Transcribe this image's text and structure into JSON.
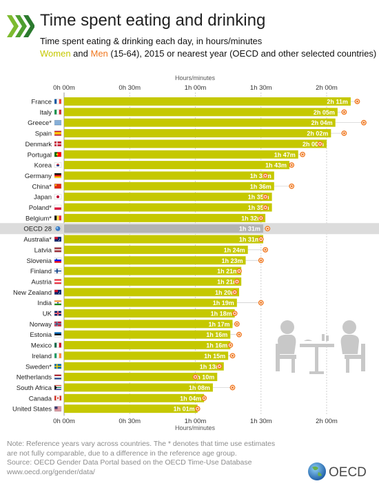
{
  "header": {
    "title": "Time spent eating and drinking",
    "subtitle": "Time spent eating & drinking each day, in hours/minutes",
    "women_label": "Women",
    "and_label": " and ",
    "men_label": "Men",
    "subtitle_rest": " (15-64), 2015 or nearest year (OECD and other selected countries)"
  },
  "colors": {
    "women": "#c5c800",
    "men": "#f07820",
    "bar": "#c5c800",
    "highlight_row": "#dcdcdc",
    "highlight_bar": "#b3b3b3"
  },
  "chart_data": {
    "type": "bar",
    "orientation": "horizontal",
    "axis_title": "Hours/minutes",
    "xlim": [
      0,
      150
    ],
    "x_unit": "minutes",
    "ticks": [
      {
        "value": 0,
        "label": "0h 00m"
      },
      {
        "value": 30,
        "label": "0h 30m"
      },
      {
        "value": 60,
        "label": "1h 00m"
      },
      {
        "value": 90,
        "label": "1h 30m"
      },
      {
        "value": 120,
        "label": "2h 00m"
      }
    ],
    "highlight": "OECD 28",
    "categories": [
      "France",
      "Italy",
      "Greece*",
      "Spain",
      "Denmark",
      "Portugal",
      "Korea",
      "Germany",
      "China*",
      "Japan",
      "Poland*",
      "Belgium*",
      "OECD 28",
      "Australia*",
      "Latvia",
      "Slovenia",
      "Finland",
      "Austria",
      "New Zealand",
      "India",
      "UK",
      "Norway",
      "Estonia",
      "Mexico",
      "Ireland",
      "Sweden*",
      "Netherlands",
      "South Africa",
      "Canada",
      "United States"
    ],
    "series": [
      {
        "name": "Women",
        "values": [
          131,
          125,
          124,
          122,
          120,
          107,
          103,
          96,
          96,
          95,
          95,
          92,
          91,
          91,
          84,
          83,
          81,
          81,
          80,
          79,
          78,
          77,
          76,
          76,
          75,
          73,
          70,
          68,
          64,
          61
        ]
      },
      {
        "name": "Men",
        "values": [
          134,
          128,
          137,
          128,
          117,
          109,
          104,
          92,
          104,
          92,
          92,
          90,
          93,
          90,
          92,
          90,
          80,
          79,
          78,
          90,
          78,
          79,
          80,
          76,
          77,
          71,
          60,
          77,
          64,
          61
        ]
      }
    ],
    "data_labels": [
      "2h 11m",
      "2h 05m",
      "2h 04m",
      "2h 02m",
      "2h 00m",
      "1h 47m",
      "1h 43m",
      "1h 36m",
      "1h 36m",
      "1h 35m",
      "1h 35m",
      "1h 32m",
      "1h 31m",
      "1h 31m",
      "1h 24m",
      "1h 23m",
      "1h 21m",
      "1h 21m",
      "1h 20m",
      "1h 19m",
      "1h 18m",
      "1h 17m",
      "1h 16m",
      "1h 16m",
      "1h 15m",
      "1h 13m",
      "1h 10m",
      "1h 08m",
      "1h 04m",
      "1h 01m"
    ],
    "flags": [
      "flag-fr",
      "flag-it",
      "flag-gr",
      "flag-es",
      "flag-dk",
      "flag-pt",
      "flag-kr",
      "flag-de",
      "flag-cn",
      "flag-jp",
      "flag-pl",
      "flag-be",
      "flag-oecd",
      "flag-au",
      "flag-lv",
      "flag-si",
      "flag-fi",
      "flag-at",
      "flag-nz",
      "flag-in",
      "flag-uk",
      "flag-no",
      "flag-ee",
      "flag-mx",
      "flag-ie",
      "flag-se",
      "flag-nl",
      "flag-za",
      "flag-ca",
      "flag-us"
    ]
  },
  "note": {
    "line1": "Note: Reference years vary across countries. The * denotes that time use estimates",
    "line2": "are not fully comparable, due to a difference in the reference age group.",
    "line3": "Source: OECD Gender Data Portal based on the OECD Time-Use Database",
    "line4": "www.oecd.org/gender/data/"
  },
  "brand": {
    "name": "OECD"
  }
}
